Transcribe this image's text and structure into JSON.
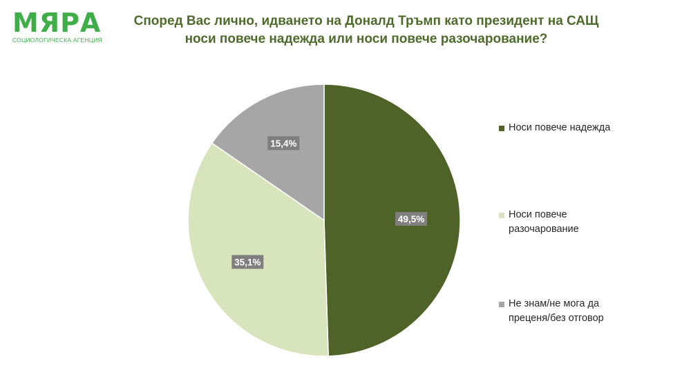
{
  "logo": {
    "main": "МЯРА",
    "sub": "СОЦИОЛОГИЧЕСКА АГЕНЦИЯ"
  },
  "title_lines": [
    "Според Вас лично, идването на Доналд Тръмп като президент на САЩ",
    "носи повече надежда или носи повече разочарование?"
  ],
  "colors": {
    "title": "#4e6b2b",
    "logo": "#3fae49",
    "label_box": "#7f7f7f",
    "label_text": "#ffffff"
  },
  "chart_data": {
    "type": "pie",
    "title": "Според Вас лично, идването на Доналд Тръмп като президент на САЩ носи повече надежда или носи повече разочарование?",
    "categories": [
      "Носи повече надежда",
      "Носи повече разочарование",
      "Не знам/не мога да преценя/без отговор"
    ],
    "values": [
      49.5,
      35.1,
      15.4
    ],
    "labels": [
      "49,5%",
      "35,1%",
      "15,4%"
    ],
    "colors": [
      "#4f6228",
      "#d8e4bc",
      "#a6a6a6"
    ],
    "legend_position": "right",
    "start_angle": "12 o'clock",
    "direction": "clockwise"
  },
  "legend": [
    {
      "lines": [
        "Носи повече надежда"
      ],
      "color": "#4f6228"
    },
    {
      "lines": [
        "Носи повече",
        "разочарование"
      ],
      "color": "#d8e4bc"
    },
    {
      "lines": [
        "Не знам/не мога да",
        "преценя/без отговор"
      ],
      "color": "#a6a6a6"
    }
  ]
}
